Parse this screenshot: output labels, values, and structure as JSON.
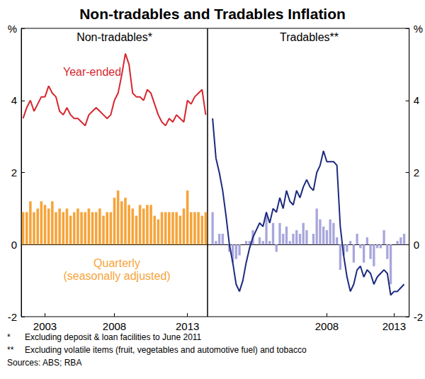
{
  "title": "Non-tradables and Tradables Inflation",
  "footnotes": [
    {
      "mark": "*",
      "text": "Excluding deposit & loan facilities to June 2011"
    },
    {
      "mark": "**",
      "text": "Excluding volatile items (fruit, vegetables and automotive fuel) and tobacco"
    }
  ],
  "source": "Sources: ABS; RBA",
  "chart_data": [
    {
      "type": "line",
      "title": "Non-tradables*",
      "categories": [
        null,
        null,
        null,
        null,
        null,
        null,
        "2003",
        null,
        null,
        null,
        null,
        null,
        null,
        null,
        null,
        null,
        null,
        null,
        null,
        null,
        null,
        null,
        null,
        null,
        null,
        "2008",
        null,
        null,
        null,
        null,
        null,
        null,
        null,
        null,
        null,
        null,
        null,
        null,
        null,
        null,
        null,
        null,
        null,
        null,
        null,
        "2013",
        null,
        null,
        null,
        null,
        null
      ],
      "ylim": [
        -2,
        6
      ],
      "yticks": [
        -2,
        0,
        2,
        4,
        {
          "value": 6,
          "label": "%"
        }
      ],
      "grid": false,
      "series": [
        {
          "name": "Year-ended",
          "type": "line",
          "color": "#d7262e",
          "values": [
            3.5,
            3.8,
            4.0,
            3.7,
            3.9,
            4.1,
            4.1,
            4.4,
            4.2,
            4.1,
            3.7,
            3.6,
            3.8,
            3.6,
            3.5,
            3.5,
            3.4,
            3.3,
            3.6,
            3.7,
            3.8,
            3.7,
            3.6,
            3.5,
            3.6,
            4.0,
            4.2,
            4.7,
            5.3,
            5.0,
            4.2,
            4.1,
            4.1,
            4.0,
            4.3,
            4.2,
            3.9,
            3.6,
            3.4,
            3.3,
            3.5,
            3.4,
            3.6,
            3.5,
            3.4,
            4.0,
            3.9,
            4.1,
            4.2,
            4.3,
            3.6
          ]
        },
        {
          "name": "Quarterly\n(seasonally adjusted)",
          "type": "bar",
          "color": "#f6a43a",
          "values": [
            0.9,
            0.9,
            1.2,
            0.9,
            1.0,
            1.2,
            1.1,
            1.0,
            1.2,
            0.9,
            1.0,
            0.9,
            1.0,
            0.8,
            0.9,
            1.0,
            0.9,
            0.9,
            1.0,
            0.9,
            0.9,
            1.0,
            0.8,
            0.9,
            0.9,
            1.3,
            1.5,
            1.2,
            1.3,
            1.1,
            1.0,
            0.8,
            1.1,
            1.0,
            1.1,
            1.1,
            0.8,
            0.7,
            0.9,
            0.9,
            0.9,
            0.9,
            0.9,
            0.8,
            1.0,
            1.5,
            0.9,
            0.9,
            0.9,
            0.8,
            0.9
          ]
        }
      ]
    },
    {
      "type": "line",
      "title": "Tradables**",
      "categories": [
        null,
        null,
        null,
        null,
        null,
        null,
        null,
        null,
        null,
        null,
        null,
        null,
        null,
        null,
        null,
        null,
        null,
        null,
        null,
        null,
        null,
        null,
        null,
        null,
        null,
        null,
        null,
        null,
        null,
        null,
        null,
        null,
        null,
        null,
        null,
        "2008",
        null,
        null,
        null,
        null,
        null,
        null,
        null,
        null,
        null,
        null,
        null,
        null,
        null,
        null,
        null,
        null,
        null,
        null,
        null,
        "2013",
        null,
        null,
        null,
        null
      ],
      "ylim": [
        -2,
        6
      ],
      "yticks": [
        -2,
        0,
        2,
        4,
        {
          "value": 6,
          "label": "%"
        }
      ],
      "grid": false,
      "series": [
        {
          "type": "line",
          "color": "#1c2a7d",
          "values": [
            null,
            3.5,
            2.4,
            2.0,
            1.5,
            0.8,
            0.0,
            -0.5,
            -1.1,
            -1.3,
            -1.0,
            -0.5,
            -0.1,
            0.2,
            0.4,
            0.6,
            0.5,
            0.9,
            0.6,
            1.0,
            0.9,
            1.3,
            1.0,
            1.5,
            1.2,
            1.1,
            1.5,
            1.3,
            1.6,
            1.8,
            1.6,
            1.5,
            2.0,
            2.2,
            2.6,
            2.3,
            2.3,
            2.3,
            2.2,
            0.5,
            -0.3,
            -0.9,
            -1.3,
            -1.1,
            -0.7,
            -0.6,
            -0.9,
            -0.7,
            -0.8,
            -1.1,
            -0.9,
            -0.8,
            -0.7,
            -0.8,
            -1.4,
            -1.3,
            -1.3,
            -1.2,
            -1.1,
            null
          ]
        },
        {
          "type": "bar",
          "color": "#a8a6dc",
          "values": [
            null,
            0.9,
            0.1,
            0.3,
            0.3,
            0.0,
            -0.2,
            -0.5,
            -0.4,
            -0.3,
            0.0,
            0.1,
            0.1,
            0.4,
            0.0,
            0.2,
            0.1,
            0.8,
            0.1,
            0.6,
            -0.2,
            0.6,
            0.3,
            0.5,
            0.1,
            0.3,
            0.4,
            0.3,
            0.6,
            0.4,
            0.0,
            0.3,
            1.0,
            0.7,
            0.5,
            0.4,
            0.7,
            0.6,
            0.2,
            -0.7,
            -0.3,
            -0.2,
            0.1,
            -0.5,
            0.3,
            -0.1,
            -0.5,
            0.2,
            -0.4,
            -0.6,
            -0.1,
            -0.1,
            0.4,
            -0.4,
            -1.1,
            0.0,
            0.1,
            0.2,
            0.3,
            null
          ]
        }
      ]
    }
  ]
}
